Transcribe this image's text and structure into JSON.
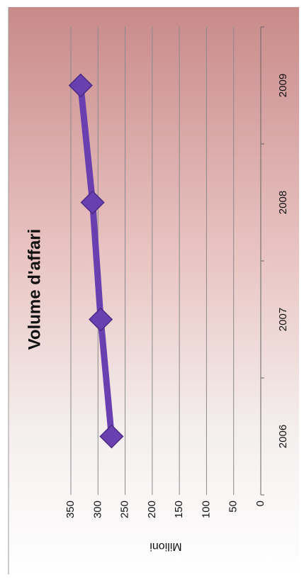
{
  "chart_data": {
    "type": "line",
    "title": "Volume d'affari",
    "y_label": "Milioni",
    "categories": [
      "2006",
      "2007",
      "2008",
      "2009"
    ],
    "series": [
      {
        "name": "Volume d'affari",
        "color": "#6a3fb0",
        "values": [
          275,
          295,
          310,
          332
        ]
      }
    ],
    "ylim": [
      0,
      350
    ],
    "yticks": [
      0,
      50,
      100,
      150,
      200,
      250,
      300,
      350
    ],
    "grid": true
  }
}
